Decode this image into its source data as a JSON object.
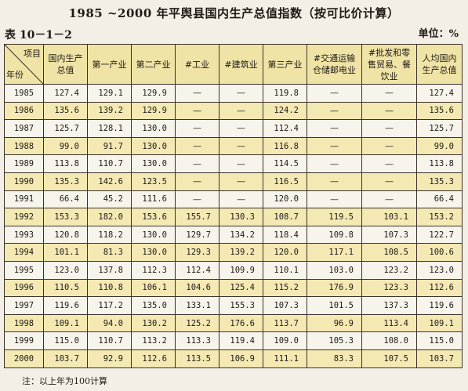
{
  "title": "1985 ~2000 年平舆县国内生产总值指数（按可比价计算）",
  "table_no": "表 10－1－2",
  "unit": "单位：%",
  "headers": {
    "item": "项目",
    "year": "年份",
    "gdp": "国内生产总值",
    "primary": "第一产业",
    "secondary": "第二产业",
    "industry": "#工业",
    "construction": "#建筑业",
    "tertiary": "第三产业",
    "transport": "#交通运输仓储邮电业",
    "trade": "#批发和零售贸易、餐饮业",
    "per_capita": "人均国内生产总值"
  },
  "rows": [
    [
      "1985",
      "127.4",
      "129.1",
      "129.9",
      "—",
      "—",
      "119.8",
      "—",
      "—",
      "127.4"
    ],
    [
      "1986",
      "135.6",
      "139.2",
      "129.9",
      "—",
      "—",
      "124.2",
      "—",
      "—",
      "135.6"
    ],
    [
      "1987",
      "125.7",
      "128.1",
      "130.0",
      "—",
      "—",
      "112.4",
      "—",
      "—",
      "125.7"
    ],
    [
      "1988",
      "99.0",
      "91.7",
      "130.0",
      "—",
      "—",
      "116.8",
      "—",
      "—",
      "99.0"
    ],
    [
      "1989",
      "113.8",
      "110.7",
      "130.0",
      "—",
      "—",
      "114.5",
      "—",
      "—",
      "113.8"
    ],
    [
      "1990",
      "135.3",
      "142.6",
      "123.5",
      "—",
      "—",
      "116.5",
      "—",
      "—",
      "135.3"
    ],
    [
      "1991",
      "66.4",
      "45.2",
      "111.6",
      "—",
      "—",
      "120.0",
      "—",
      "—",
      "66.4"
    ],
    [
      "1992",
      "153.3",
      "182.0",
      "153.6",
      "155.7",
      "130.3",
      "108.7",
      "119.5",
      "103.1",
      "153.2"
    ],
    [
      "1993",
      "120.8",
      "118.2",
      "130.0",
      "129.7",
      "134.2",
      "118.4",
      "109.8",
      "107.3",
      "122.7"
    ],
    [
      "1994",
      "101.1",
      "81.3",
      "130.0",
      "129.3",
      "139.2",
      "120.0",
      "117.1",
      "108.5",
      "100.6"
    ],
    [
      "1995",
      "123.0",
      "137.8",
      "112.3",
      "112.4",
      "109.9",
      "110.1",
      "103.0",
      "123.2",
      "123.0"
    ],
    [
      "1996",
      "110.5",
      "110.8",
      "106.1",
      "104.6",
      "125.4",
      "115.2",
      "176.9",
      "123.3",
      "112.6"
    ],
    [
      "1997",
      "119.6",
      "117.2",
      "135.0",
      "133.1",
      "155.3",
      "107.3",
      "101.5",
      "137.3",
      "119.6"
    ],
    [
      "1998",
      "109.1",
      "94.0",
      "130.2",
      "125.2",
      "176.6",
      "113.7",
      "96.9",
      "113.4",
      "109.1"
    ],
    [
      "1999",
      "115.0",
      "110.7",
      "113.2",
      "113.3",
      "119.4",
      "109.0",
      "105.3",
      "108.0",
      "115.0"
    ],
    [
      "2000",
      "103.7",
      "92.9",
      "112.6",
      "113.5",
      "106.9",
      "111.1",
      "83.3",
      "107.5",
      "103.7"
    ]
  ],
  "footnote": "注：以上年为100计算"
}
